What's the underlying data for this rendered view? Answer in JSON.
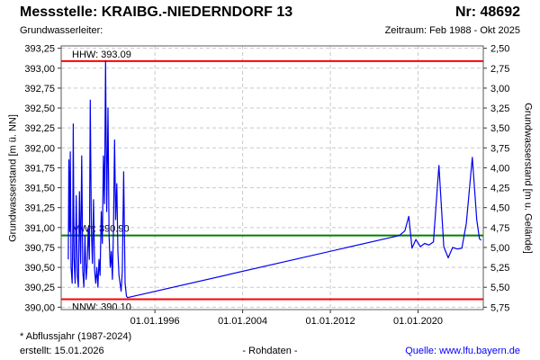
{
  "header": {
    "title": "Messstelle: KRAIBG.-NIEDERNDORF 13",
    "station_number": "Nr: 48692",
    "aquifer_label": "Grundwasserleiter:",
    "period_label": "Zeitraum: Feb 1988 - Okt 2025"
  },
  "footer": {
    "footnote": "* Abflussjahr (1987-2024)",
    "created": "erstellt: 15.01.2026",
    "data_type": "- Rohdaten -",
    "source": "Quelle: www.lfu.bayern.de"
  },
  "chart_data": {
    "type": "line",
    "grid": true,
    "legend": false,
    "decimal_separator": ",",
    "x_axis": {
      "range": [
        1987.45,
        2025.95
      ],
      "ticks": [
        {
          "year": 1996,
          "label": "01.01.1996"
        },
        {
          "year": 2004,
          "label": "01.01.2004"
        },
        {
          "year": 2012,
          "label": "01.01.2012"
        },
        {
          "year": 2020,
          "label": "01.01.2020"
        }
      ]
    },
    "y_axis_left": {
      "label": "Grundwasserstand [m ü. NN]",
      "min": 390.0,
      "max": 393.25,
      "step": 0.25,
      "range": [
        389.97,
        393.28
      ],
      "tick_values": [
        390.0,
        390.25,
        390.5,
        390.75,
        391.0,
        391.25,
        391.5,
        391.75,
        392.0,
        392.25,
        392.5,
        392.75,
        393.0,
        393.25
      ]
    },
    "y_axis_right": {
      "label": "Grundwasserstand [m u. Gelände]",
      "min": 2.5,
      "max": 5.75,
      "step": 0.25,
      "ground_elevation": 395.75,
      "tick_values": [
        5.75,
        5.5,
        5.25,
        5.0,
        4.75,
        4.5,
        4.25,
        4.0,
        3.75,
        3.5,
        3.25,
        3.0,
        2.75,
        2.5
      ]
    },
    "reference_lines": [
      {
        "name": "HHW",
        "label": "HHW: 393.09",
        "value": 393.09,
        "color": "#ff0000",
        "label_position": "above"
      },
      {
        "name": "MW",
        "label": "MW*: 390.90",
        "value": 390.9,
        "color": "#008000",
        "label_position": "above"
      },
      {
        "name": "NNW",
        "label": "NNW: 390.10",
        "value": 390.1,
        "color": "#ff0000",
        "label_position": "below"
      }
    ],
    "series": [
      {
        "name": "Grundwasserstand Rohdaten",
        "color": "#0000ee",
        "points": [
          [
            1988.1,
            390.6
          ],
          [
            1988.15,
            391.85
          ],
          [
            1988.22,
            390.95
          ],
          [
            1988.28,
            391.95
          ],
          [
            1988.35,
            390.5
          ],
          [
            1988.45,
            390.3
          ],
          [
            1988.5,
            390.8
          ],
          [
            1988.55,
            392.3
          ],
          [
            1988.62,
            390.6
          ],
          [
            1988.72,
            390.3
          ],
          [
            1988.82,
            391.4
          ],
          [
            1988.92,
            390.4
          ],
          [
            1989.02,
            390.25
          ],
          [
            1989.12,
            391.45
          ],
          [
            1989.22,
            390.55
          ],
          [
            1989.32,
            391.9
          ],
          [
            1989.42,
            390.45
          ],
          [
            1989.52,
            390.25
          ],
          [
            1989.62,
            390.9
          ],
          [
            1989.72,
            390.35
          ],
          [
            1989.82,
            390.55
          ],
          [
            1989.92,
            391.0
          ],
          [
            1990.02,
            390.6
          ],
          [
            1990.1,
            392.6
          ],
          [
            1990.2,
            391.0
          ],
          [
            1990.3,
            390.55
          ],
          [
            1990.4,
            391.35
          ],
          [
            1990.5,
            390.45
          ],
          [
            1990.6,
            390.3
          ],
          [
            1990.7,
            390.5
          ],
          [
            1990.8,
            390.25
          ],
          [
            1990.9,
            390.6
          ],
          [
            1991.0,
            390.4
          ],
          [
            1991.1,
            391.2
          ],
          [
            1991.2,
            390.8
          ],
          [
            1991.3,
            391.9
          ],
          [
            1991.4,
            391.3
          ],
          [
            1991.5,
            393.09
          ],
          [
            1991.6,
            391.2
          ],
          [
            1991.72,
            392.5
          ],
          [
            1991.82,
            390.9
          ],
          [
            1991.92,
            390.5
          ],
          [
            1992.02,
            390.7
          ],
          [
            1992.12,
            390.35
          ],
          [
            1992.22,
            391.0
          ],
          [
            1992.32,
            392.1
          ],
          [
            1992.42,
            391.1
          ],
          [
            1992.52,
            391.55
          ],
          [
            1992.62,
            390.7
          ],
          [
            1992.72,
            390.4
          ],
          [
            1992.82,
            390.3
          ],
          [
            1992.92,
            390.2
          ],
          [
            1993.02,
            390.45
          ],
          [
            1993.15,
            391.7
          ],
          [
            1993.28,
            390.3
          ],
          [
            1993.4,
            390.14
          ],
          [
            1993.5,
            390.12
          ],
          [
            2018.3,
            390.9
          ],
          [
            2018.8,
            390.96
          ],
          [
            2019.15,
            391.14
          ],
          [
            2019.45,
            390.74
          ],
          [
            2019.8,
            390.85
          ],
          [
            2020.2,
            390.76
          ],
          [
            2020.6,
            390.8
          ],
          [
            2021.0,
            390.78
          ],
          [
            2021.4,
            390.82
          ],
          [
            2021.9,
            391.78
          ],
          [
            2022.35,
            390.76
          ],
          [
            2022.75,
            390.62
          ],
          [
            2023.15,
            390.75
          ],
          [
            2023.6,
            390.73
          ],
          [
            2024.0,
            390.74
          ],
          [
            2024.4,
            391.05
          ],
          [
            2024.95,
            391.88
          ],
          [
            2025.35,
            391.1
          ],
          [
            2025.6,
            390.86
          ],
          [
            2025.75,
            390.84
          ]
        ]
      }
    ],
    "styles": {
      "grid_color": "#c9c9c9",
      "frame_color": "#5a5a5a",
      "tick_color": "#333333",
      "label_color": "#000000"
    }
  }
}
